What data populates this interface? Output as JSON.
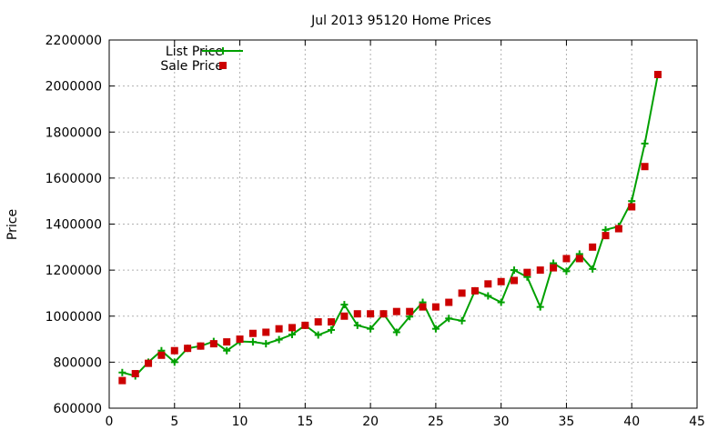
{
  "chart_data": {
    "type": "line",
    "title": "Jul 2013 95120 Home Prices",
    "xlabel": "",
    "ylabel": "Price",
    "xlim": [
      0,
      45
    ],
    "ylim": [
      600000,
      2200000
    ],
    "xticks": [
      "0",
      "5",
      "10",
      "15",
      "20",
      "25",
      "30",
      "35",
      "40",
      "45"
    ],
    "yticks": [
      "600000",
      "800000",
      "1000000",
      "1200000",
      "1400000",
      "1600000",
      "1800000",
      "2000000",
      "2200000"
    ],
    "grid": true,
    "legend": "top-left",
    "x": [
      1,
      2,
      3,
      4,
      5,
      6,
      7,
      8,
      9,
      10,
      11,
      12,
      13,
      14,
      15,
      16,
      17,
      18,
      19,
      20,
      21,
      22,
      23,
      24,
      25,
      26,
      27,
      28,
      29,
      30,
      31,
      32,
      33,
      34,
      35,
      36,
      37,
      38,
      39,
      40,
      41,
      42
    ],
    "series": [
      {
        "name": "List Price",
        "style": "line-plus",
        "color": "#00a000",
        "values": [
          755000,
          740000,
          800000,
          850000,
          800000,
          860000,
          870000,
          890000,
          850000,
          890000,
          888000,
          880000,
          898000,
          920000,
          960000,
          918000,
          940000,
          1050000,
          960000,
          945000,
          1010000,
          930000,
          998000,
          1060000,
          945000,
          990000,
          980000,
          1110000,
          1088000,
          1060000,
          1200000,
          1170000,
          1040000,
          1230000,
          1195000,
          1270000,
          1205000,
          1375000,
          1390000,
          1500000,
          1750000,
          2050000
        ]
      },
      {
        "name": "Sale Price",
        "style": "square",
        "color": "#cc0000",
        "values": [
          720000,
          750000,
          795000,
          830000,
          850000,
          860000,
          870000,
          880000,
          888000,
          900000,
          925000,
          930000,
          945000,
          950000,
          960000,
          975000,
          975000,
          1000000,
          1010000,
          1010000,
          1010000,
          1020000,
          1020000,
          1040000,
          1040000,
          1060000,
          1100000,
          1110000,
          1140000,
          1150000,
          1155000,
          1190000,
          1200000,
          1210000,
          1250000,
          1250000,
          1300000,
          1350000,
          1380000,
          1475000,
          1650000,
          2050000
        ]
      }
    ]
  }
}
